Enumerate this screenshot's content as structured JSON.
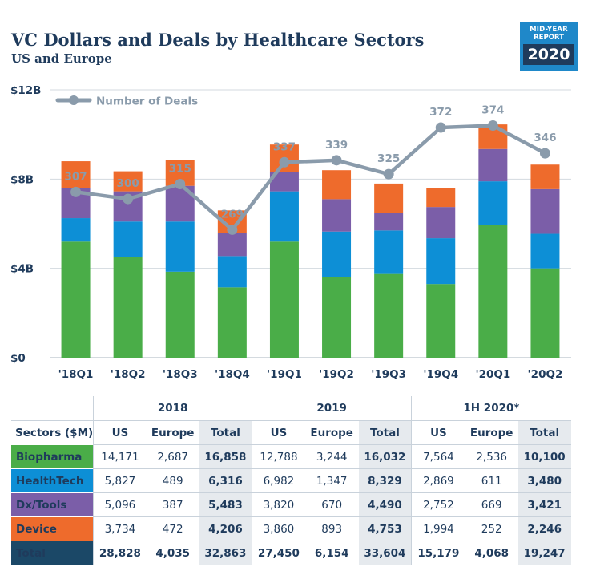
{
  "header": {
    "title": "VC Dollars and Deals by Healthcare Sectors",
    "subtitle": "US and Europe",
    "badge_line1": "MID-YEAR",
    "badge_line2": "REPORT",
    "badge_year": "2020"
  },
  "chart_data": {
    "type": "bar",
    "stacked": true,
    "categories": [
      "'18Q1",
      "'18Q2",
      "'18Q3",
      "'18Q4",
      "'19Q1",
      "'19Q2",
      "'19Q3",
      "'19Q4",
      "'20Q1",
      "'20Q2"
    ],
    "y_ticks": [
      "$0",
      "$4B",
      "$8B",
      "$12B"
    ],
    "y_unit": "B",
    "ylim": [
      0,
      12
    ],
    "grid": true,
    "series": [
      {
        "key": "biopharma",
        "color": "#4aad48",
        "values": [
          5.2,
          4.5,
          3.85,
          3.15,
          5.2,
          3.6,
          3.75,
          3.3,
          5.95,
          4.0
        ]
      },
      {
        "key": "healthtech",
        "color": "#0d8fd6",
        "values": [
          1.05,
          1.6,
          2.25,
          1.4,
          2.25,
          2.05,
          1.95,
          2.05,
          1.95,
          1.55
        ]
      },
      {
        "key": "dxtools",
        "color": "#7b5ea8",
        "values": [
          1.35,
          1.35,
          1.6,
          1.05,
          0.85,
          1.45,
          0.8,
          1.4,
          1.45,
          2.0
        ]
      },
      {
        "key": "device",
        "color": "#ee6b2c",
        "values": [
          1.2,
          0.9,
          1.15,
          1.0,
          1.25,
          1.3,
          1.3,
          0.85,
          1.1,
          1.1
        ]
      }
    ],
    "line_series": {
      "name": "Number of Deals",
      "color": "#8a9bab",
      "values": [
        307,
        300,
        315,
        269,
        337,
        339,
        325,
        372,
        374,
        346
      ],
      "labels": [
        "307",
        "300",
        "315",
        "269",
        "337",
        "339",
        "325",
        "372",
        "374",
        "346"
      ]
    }
  },
  "table": {
    "year_headers": [
      "2018",
      "2019",
      "1H 2020*"
    ],
    "sector_header": "Sectors ($M)",
    "col_headers": [
      "US",
      "Europe",
      "Total",
      "US",
      "Europe",
      "Total",
      "US",
      "Europe",
      "Total"
    ],
    "rows": [
      {
        "label": "Biopharma",
        "color": "#4aad48",
        "cells": [
          "14,171",
          "2,687",
          "16,858",
          "12,788",
          "3,244",
          "16,032",
          "7,564",
          "2,536",
          "10,100"
        ]
      },
      {
        "label": "HealthTech",
        "color": "#0d8fd6",
        "cells": [
          "5,827",
          "489",
          "6,316",
          "6,982",
          "1,347",
          "8,329",
          "2,869",
          "611",
          "3,480"
        ]
      },
      {
        "label": "Dx/Tools",
        "color": "#7b5ea8",
        "cells": [
          "5,096",
          "387",
          "5,483",
          "3,820",
          "670",
          "4,490",
          "2,752",
          "669",
          "3,421"
        ]
      },
      {
        "label": "Device",
        "color": "#ee6b2c",
        "cells": [
          "3,734",
          "472",
          "4,206",
          "3,860",
          "893",
          "4,753",
          "1,994",
          "252",
          "2,246"
        ]
      },
      {
        "label": "Total",
        "color": "#1b4867",
        "cells": [
          "28,828",
          "4,035",
          "32,863",
          "27,450",
          "6,154",
          "33,604",
          "15,179",
          "4,068",
          "19,247"
        ]
      }
    ]
  }
}
